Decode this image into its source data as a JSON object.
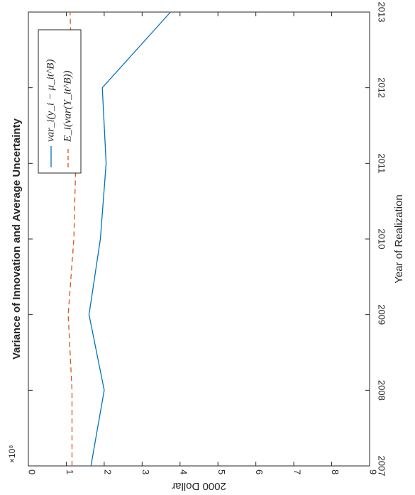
{
  "chart_data": {
    "type": "line",
    "title": "Variance of Innovation and Average Uncertainty",
    "xlabel": "Year of Realization",
    "ylabel": "2000 Dollar",
    "y_multiplier_label": "×10^8",
    "x": [
      2007,
      2008,
      2009,
      2010,
      2011,
      2012,
      2013
    ],
    "xlim": [
      2007,
      2013
    ],
    "ylim": [
      0,
      9
    ],
    "x_ticks": [
      "2007",
      "2008",
      "2009",
      "2010",
      "2011",
      "2012",
      "2013"
    ],
    "y_ticks": [
      "0",
      "1",
      "2",
      "3",
      "4",
      "5",
      "6",
      "7",
      "8",
      "9"
    ],
    "orientation": "rotated 90° clockwise (year axis vertical, value axis horizontal)",
    "grid": false,
    "legend_position": "top-left",
    "series": [
      {
        "name": "var_i(y_i − μ_it^B)",
        "style": "solid",
        "color": "#0072BD",
        "values": [
          1.65,
          2.0,
          1.6,
          1.9,
          2.05,
          1.95,
          3.75
        ]
      },
      {
        "name": "E_i(var(Y_it^B))",
        "style": "dashed",
        "color": "#D95319",
        "values": [
          1.15,
          1.15,
          1.05,
          1.2,
          1.25,
          1.15,
          1.1
        ]
      }
    ]
  }
}
